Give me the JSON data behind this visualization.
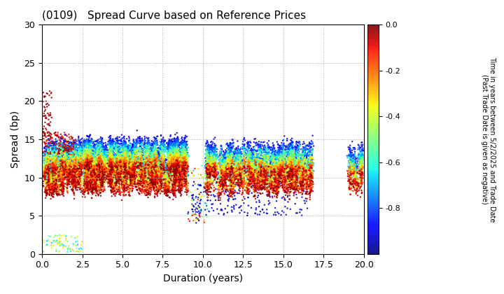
{
  "title": "(0109)   Spread Curve based on Reference Prices",
  "xlabel": "Duration (years)",
  "ylabel": "Spread (bp)",
  "colorbar_label": "Time in years between 5/2/2025 and Trade Date\n(Past Trade Date is given as negative)",
  "xlim": [
    0,
    20.0
  ],
  "ylim": [
    0,
    30
  ],
  "xticks": [
    0.0,
    2.5,
    5.0,
    7.5,
    10.0,
    12.5,
    15.0,
    17.5,
    20.0
  ],
  "yticks": [
    0,
    5,
    10,
    15,
    20,
    25,
    30
  ],
  "cmap": "jet",
  "clim": [
    -1.0,
    0.0
  ],
  "colorbar_ticks": [
    0.0,
    -0.2,
    -0.4,
    -0.6,
    -0.8
  ],
  "background_color": "#ffffff",
  "grid_color": "#aaaaaa",
  "point_size": 3,
  "seed": 42
}
